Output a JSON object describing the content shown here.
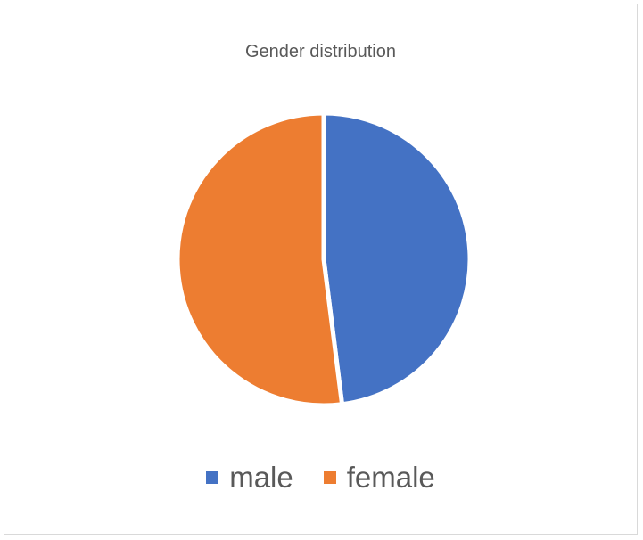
{
  "chart_data": {
    "type": "pie",
    "title": "Gender distribution",
    "categories": [
      "male",
      "female"
    ],
    "values": [
      48,
      52
    ],
    "colors": [
      "#4472C4",
      "#ED7D31"
    ],
    "legend_position": "bottom",
    "slice_border_color": "#FFFFFF"
  }
}
